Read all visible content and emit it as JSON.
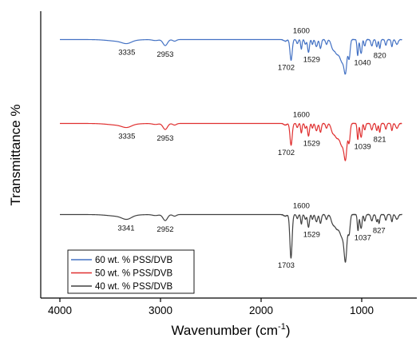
{
  "chart_data": {
    "type": "line",
    "xlabel_main": "Wavenumber (cm",
    "xlabel_sup": "-1",
    "xlabel_end": ")",
    "ylabel": "Transmittance %",
    "xlim": [
      4000,
      600
    ],
    "x_reversed": true,
    "x_ticks": [
      4000,
      3000,
      2000,
      1000
    ],
    "y_ticks_shown": false,
    "grid": false,
    "legend_position": "bottom-left",
    "series": [
      {
        "name": "60 wt. % PSS/DVB",
        "color": "#4472c4",
        "peaks": [
          {
            "wavenumber": 3335,
            "label": "3335"
          },
          {
            "wavenumber": 2953,
            "label": "2953"
          },
          {
            "wavenumber": 1702,
            "label": "1702"
          },
          {
            "wavenumber": 1600,
            "label": "1600"
          },
          {
            "wavenumber": 1529,
            "label": "1529"
          },
          {
            "wavenumber": 1040,
            "label": "1040"
          },
          {
            "wavenumber": 820,
            "label": "820"
          }
        ]
      },
      {
        "name": "50 wt. % PSS/DVB",
        "color": "#e03030",
        "peaks": [
          {
            "wavenumber": 3335,
            "label": "3335"
          },
          {
            "wavenumber": 2953,
            "label": "2953"
          },
          {
            "wavenumber": 1702,
            "label": "1702"
          },
          {
            "wavenumber": 1600,
            "label": "1600"
          },
          {
            "wavenumber": 1529,
            "label": "1529"
          },
          {
            "wavenumber": 1039,
            "label": "1039"
          },
          {
            "wavenumber": 821,
            "label": "821"
          }
        ]
      },
      {
        "name": "40 wt. % PSS/DVB",
        "color": "#404040",
        "peaks": [
          {
            "wavenumber": 3341,
            "label": "3341"
          },
          {
            "wavenumber": 2952,
            "label": "2952"
          },
          {
            "wavenumber": 1703,
            "label": "1703"
          },
          {
            "wavenumber": 1600,
            "label": "1600"
          },
          {
            "wavenumber": 1529,
            "label": "1529"
          },
          {
            "wavenumber": 1037,
            "label": "1037"
          },
          {
            "wavenumber": 827,
            "label": "827"
          }
        ]
      }
    ]
  }
}
